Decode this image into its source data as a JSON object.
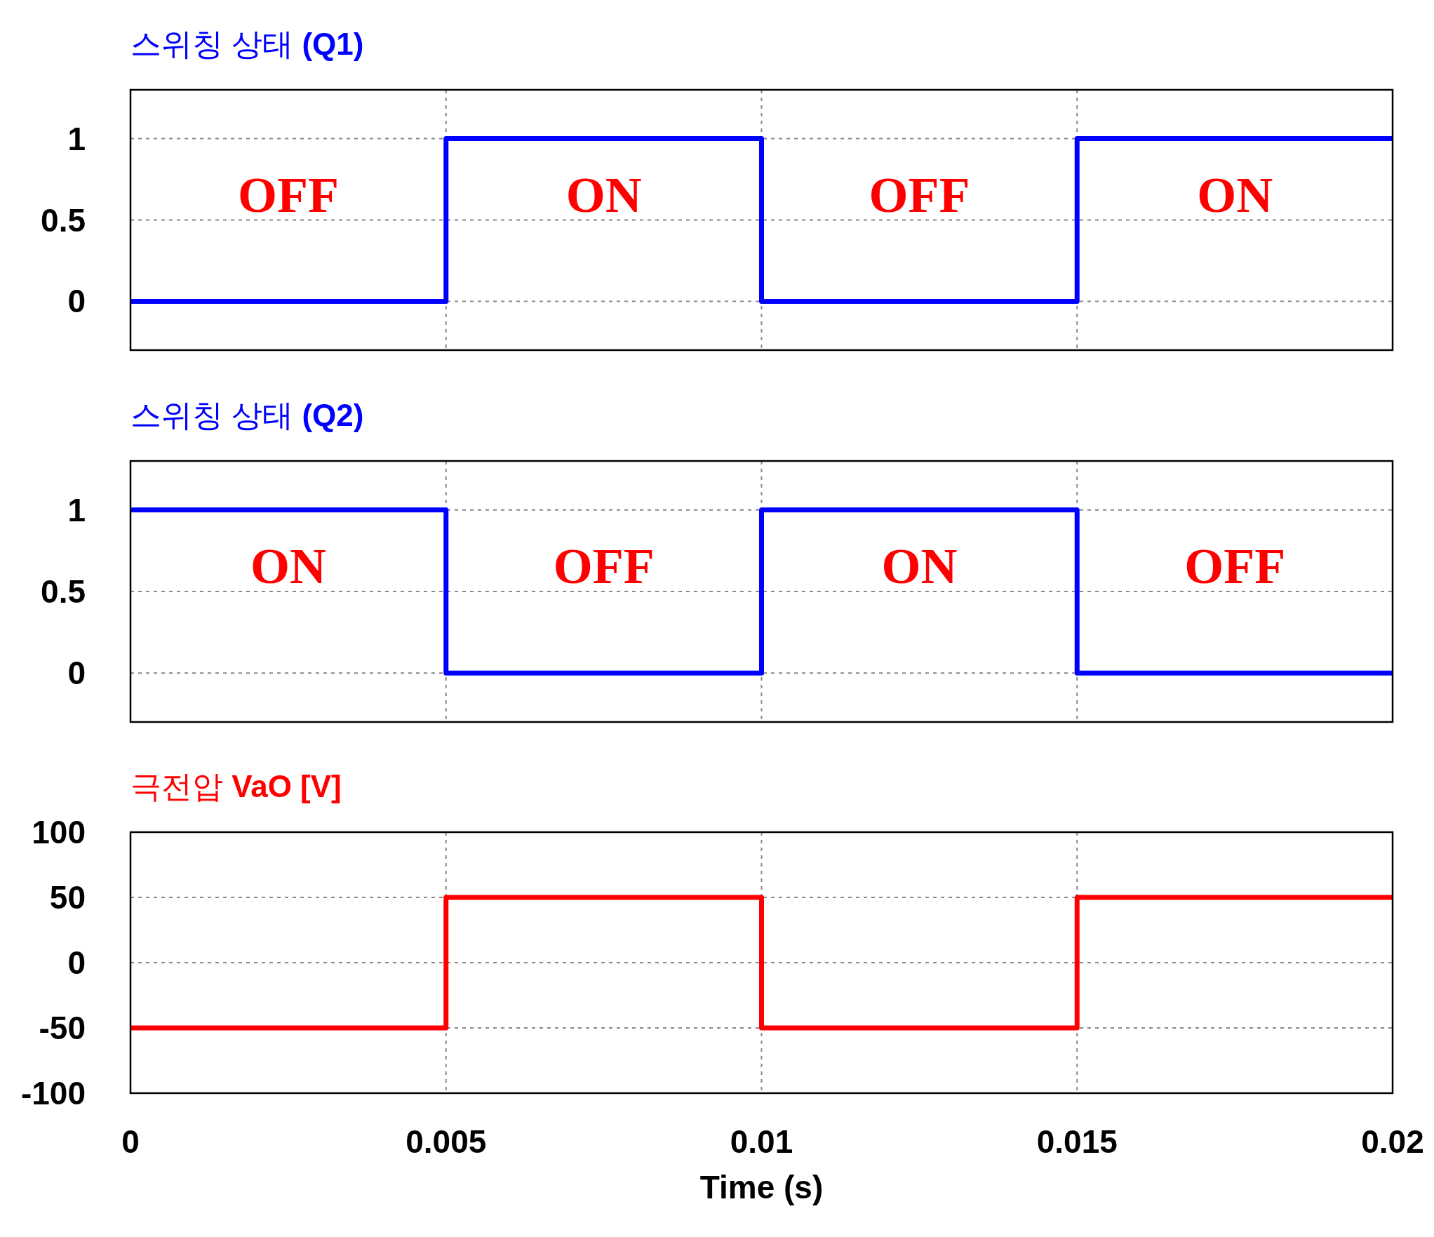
{
  "chart_data": [
    {
      "type": "step",
      "title": "스위칭 상태 **(Q1)**",
      "x": [
        0,
        0.005,
        0.01,
        0.015,
        0.02
      ],
      "series": [
        {
          "color": "#0000ff",
          "values": [
            0,
            1,
            0,
            1,
            1
          ]
        }
      ],
      "xlim": [
        0,
        0.02
      ],
      "xticks": [
        0,
        0.005,
        0.01,
        0.015,
        0.02
      ],
      "ylim": [
        -0.3,
        1.3
      ],
      "yticks": [
        0,
        0.5,
        1
      ],
      "grid": true,
      "tick_labels": "y",
      "annotations": [
        "OFF",
        "ON",
        "OFF",
        "ON"
      ]
    },
    {
      "type": "step",
      "title": "스위칭 상태 **(Q2)**",
      "x": [
        0,
        0.005,
        0.01,
        0.015,
        0.02
      ],
      "series": [
        {
          "color": "#0000ff",
          "values": [
            1,
            0,
            1,
            0,
            0
          ]
        }
      ],
      "xlim": [
        0,
        0.02
      ],
      "xticks": [
        0,
        0.005,
        0.01,
        0.015,
        0.02
      ],
      "ylim": [
        -0.3,
        1.3
      ],
      "yticks": [
        0,
        0.5,
        1
      ],
      "grid": true,
      "tick_labels": "y",
      "annotations": [
        "ON",
        "OFF",
        "ON",
        "OFF"
      ]
    },
    {
      "type": "step",
      "title": "극전압 **VaO [V]**",
      "xlabel": "Time (s)",
      "x": [
        0,
        0.005,
        0.01,
        0.015,
        0.02
      ],
      "series": [
        {
          "color": "#ff0000",
          "values": [
            -50,
            50,
            -50,
            50,
            50
          ]
        }
      ],
      "xlim": [
        0,
        0.02
      ],
      "xticks": [
        0,
        0.005,
        0.01,
        0.015,
        0.02
      ],
      "ylim": [
        -100,
        100
      ],
      "yticks": [
        -100,
        -50,
        0,
        50,
        100
      ],
      "grid": true
    }
  ]
}
